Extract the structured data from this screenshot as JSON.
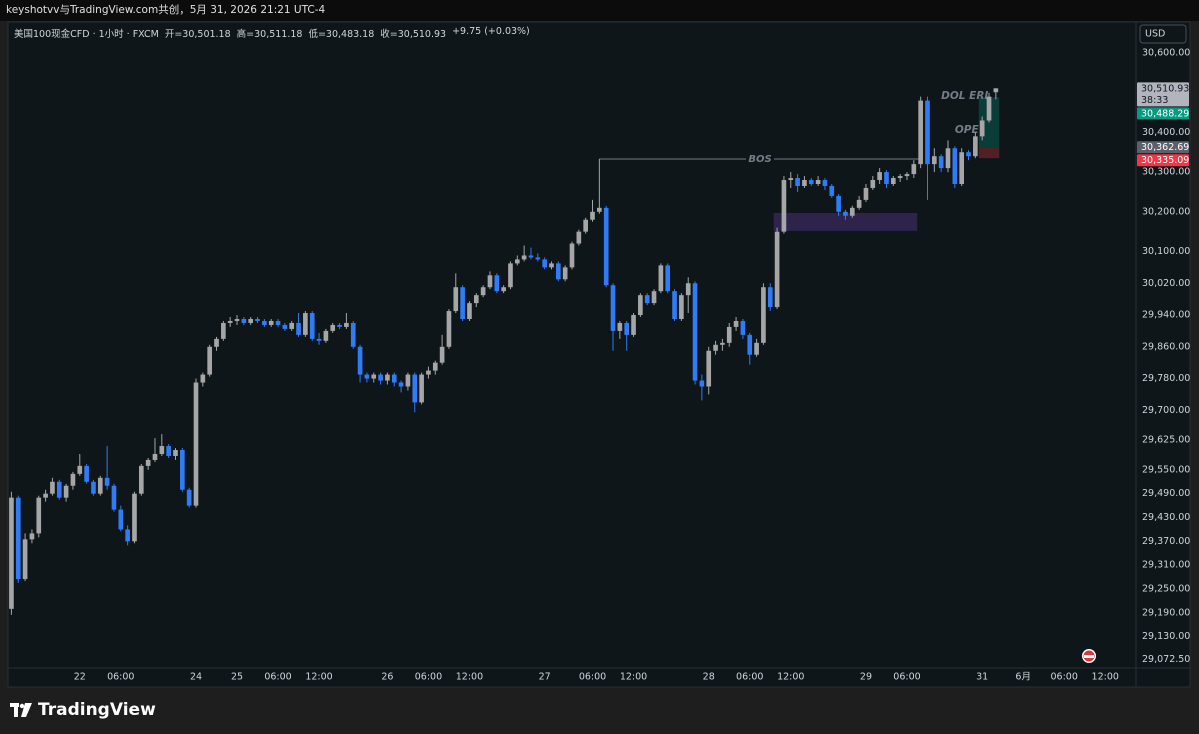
{
  "top_bar": "keyshotvv与TradingView.com共创，5月 31, 2026 21:21 UTC-4",
  "logo": "TradingView",
  "chart_data": {
    "type": "candlestick",
    "title": "美国100现金CFD · 1小时 · FXCM",
    "ohlc_legend": [
      "开=30,501.18",
      "高=30,511.18",
      "低=30,483.18",
      "收=30,510.93",
      "+9.75 (+0.03%)"
    ],
    "currency": "USD",
    "up_color": "#a6a6a6",
    "down_color": "#2f7cf6",
    "categories": [
      null,
      null,
      null,
      null,
      null,
      null,
      null,
      null,
      null,
      null,
      "22",
      null,
      null,
      null,
      null,
      null,
      "06:00",
      null,
      null,
      null,
      null,
      null,
      null,
      null,
      null,
      null,
      null,
      "24",
      null,
      null,
      null,
      null,
      null,
      "25",
      null,
      null,
      null,
      null,
      null,
      "06:00",
      null,
      null,
      null,
      null,
      null,
      "12:00",
      null,
      null,
      null,
      null,
      null,
      null,
      null,
      null,
      null,
      "26",
      null,
      null,
      null,
      null,
      null,
      "06:00",
      null,
      null,
      null,
      null,
      null,
      "12:00",
      null,
      null,
      null,
      null,
      null,
      null,
      null,
      null,
      null,
      null,
      "27",
      null,
      null,
      null,
      null,
      null,
      null,
      "06:00",
      null,
      null,
      null,
      null,
      null,
      "12:00",
      null,
      null,
      null,
      null,
      null,
      null,
      null,
      null,
      null,
      null,
      "28",
      null,
      null,
      null,
      null,
      null,
      "06:00",
      null,
      null,
      null,
      null,
      null,
      "12:00",
      null,
      null,
      null,
      null,
      null,
      null,
      null,
      null,
      null,
      null,
      "29",
      null,
      null,
      null,
      null,
      null,
      "06:00",
      null,
      null,
      null,
      null,
      null,
      null,
      null,
      null,
      null,
      null,
      "31",
      null,
      null,
      null,
      null,
      null,
      "6月",
      null,
      null,
      null,
      null,
      null,
      "06:00",
      null,
      null,
      null,
      null,
      null,
      "12:00",
      null,
      null,
      null,
      null
    ],
    "candles": [
      [
        29200,
        29495,
        29185,
        29480
      ],
      [
        29480,
        29485,
        29265,
        29275
      ],
      [
        29275,
        29390,
        29270,
        29375
      ],
      [
        29375,
        29400,
        29365,
        29390
      ],
      [
        29390,
        29485,
        29380,
        29480
      ],
      [
        29480,
        29500,
        29470,
        29490
      ],
      [
        29490,
        29530,
        29485,
        29520
      ],
      [
        29520,
        29525,
        29475,
        29480
      ],
      [
        29480,
        29515,
        29470,
        29510
      ],
      [
        29510,
        29545,
        29500,
        29540
      ],
      [
        29540,
        29590,
        29535,
        29560
      ],
      [
        29560,
        29565,
        29515,
        29520
      ],
      [
        29520,
        29525,
        29485,
        29490
      ],
      [
        29490,
        29535,
        29485,
        29530
      ],
      [
        29530,
        29610,
        29500,
        29510
      ],
      [
        29510,
        29515,
        29445,
        29450
      ],
      [
        29450,
        29460,
        29395,
        29400
      ],
      [
        29400,
        29410,
        29360,
        29370
      ],
      [
        29370,
        29495,
        29365,
        29490
      ],
      [
        29490,
        29565,
        29485,
        29560
      ],
      [
        29560,
        29580,
        29550,
        29575
      ],
      [
        29575,
        29630,
        29570,
        29590
      ],
      [
        29590,
        29640,
        29585,
        29610
      ],
      [
        29610,
        29615,
        29580,
        29585
      ],
      [
        29585,
        29605,
        29575,
        29600
      ],
      [
        29600,
        29605,
        29495,
        29500
      ],
      [
        29500,
        29505,
        29455,
        29460
      ],
      [
        29460,
        29780,
        29455,
        29770
      ],
      [
        29770,
        29795,
        29760,
        29790
      ],
      [
        29790,
        29865,
        29785,
        29860
      ],
      [
        29860,
        29885,
        29850,
        29880
      ],
      [
        29880,
        29925,
        29875,
        29920
      ],
      [
        29920,
        29935,
        29910,
        29925
      ],
      [
        29925,
        29940,
        29915,
        29930
      ],
      [
        29930,
        29935,
        29915,
        29920
      ],
      [
        29920,
        29935,
        29915,
        29930
      ],
      [
        29930,
        29935,
        29920,
        29925
      ],
      [
        29925,
        29930,
        29910,
        29915
      ],
      [
        29915,
        29930,
        29910,
        29925
      ],
      [
        29925,
        29930,
        29910,
        29915
      ],
      [
        29915,
        29920,
        29900,
        29905
      ],
      [
        29905,
        29925,
        29900,
        29920
      ],
      [
        29920,
        29945,
        29885,
        29890
      ],
      [
        29890,
        29950,
        29885,
        29945
      ],
      [
        29945,
        29950,
        29875,
        29880
      ],
      [
        29880,
        29895,
        29865,
        29875
      ],
      [
        29875,
        29905,
        29870,
        29900
      ],
      [
        29900,
        29920,
        29895,
        29915
      ],
      [
        29915,
        29920,
        29905,
        29910
      ],
      [
        29910,
        29945,
        29905,
        29920
      ],
      [
        29920,
        29925,
        29855,
        29860
      ],
      [
        29860,
        29865,
        29770,
        29790
      ],
      [
        29790,
        29795,
        29770,
        29780
      ],
      [
        29780,
        29795,
        29770,
        29790
      ],
      [
        29790,
        29795,
        29765,
        29775
      ],
      [
        29775,
        29795,
        29765,
        29790
      ],
      [
        29790,
        29795,
        29760,
        29770
      ],
      [
        29770,
        29775,
        29745,
        29760
      ],
      [
        29760,
        29795,
        29750,
        29790
      ],
      [
        29790,
        29795,
        29695,
        29720
      ],
      [
        29720,
        29795,
        29715,
        29790
      ],
      [
        29790,
        29810,
        29780,
        29800
      ],
      [
        29800,
        29825,
        29790,
        29820
      ],
      [
        29820,
        29890,
        29815,
        29860
      ],
      [
        29860,
        29955,
        29855,
        29950
      ],
      [
        29950,
        30045,
        29945,
        30010
      ],
      [
        30010,
        30015,
        29925,
        29930
      ],
      [
        29930,
        29975,
        29925,
        29970
      ],
      [
        29970,
        29995,
        29960,
        29990
      ],
      [
        29990,
        30015,
        29985,
        30010
      ],
      [
        30010,
        30050,
        30005,
        30040
      ],
      [
        30040,
        30045,
        29995,
        30000
      ],
      [
        30000,
        30015,
        29995,
        30010
      ],
      [
        30010,
        30075,
        30005,
        30070
      ],
      [
        30070,
        30090,
        30065,
        30080
      ],
      [
        30080,
        30115,
        30075,
        30090
      ],
      [
        30090,
        30110,
        30080,
        30085
      ],
      [
        30085,
        30095,
        30075,
        30080
      ],
      [
        30080,
        30085,
        30055,
        30060
      ],
      [
        30060,
        30075,
        30055,
        30070
      ],
      [
        30070,
        30075,
        30025,
        30030
      ],
      [
        30030,
        30065,
        30025,
        30060
      ],
      [
        30060,
        30125,
        30055,
        30120
      ],
      [
        30120,
        30155,
        30115,
        30150
      ],
      [
        30150,
        30185,
        30145,
        30180
      ],
      [
        30180,
        30230,
        30175,
        30200
      ],
      [
        30200,
        30333,
        30195,
        30210
      ],
      [
        30210,
        30215,
        30010,
        30015
      ],
      [
        30015,
        30020,
        29850,
        29900
      ],
      [
        29900,
        29925,
        29880,
        29920
      ],
      [
        29920,
        29925,
        29850,
        29890
      ],
      [
        29890,
        29945,
        29885,
        29940
      ],
      [
        29940,
        29995,
        29935,
        29990
      ],
      [
        29990,
        29995,
        29965,
        29970
      ],
      [
        29970,
        30005,
        29965,
        30000
      ],
      [
        30000,
        30070,
        29995,
        30065
      ],
      [
        30065,
        30070,
        29995,
        30000
      ],
      [
        30000,
        30005,
        29925,
        29930
      ],
      [
        29930,
        29995,
        29925,
        29990
      ],
      [
        29990,
        30035,
        29945,
        30020
      ],
      [
        30020,
        30025,
        29765,
        29775
      ],
      [
        29775,
        29790,
        29725,
        29760
      ],
      [
        29760,
        29860,
        29740,
        29850
      ],
      [
        29850,
        29875,
        29840,
        29865
      ],
      [
        29865,
        29880,
        29850,
        29870
      ],
      [
        29870,
        29920,
        29860,
        29910
      ],
      [
        29910,
        29935,
        29900,
        29925
      ],
      [
        29925,
        29930,
        29880,
        29890
      ],
      [
        29890,
        29895,
        29815,
        29840
      ],
      [
        29840,
        29880,
        29835,
        29870
      ],
      [
        29870,
        30020,
        29865,
        30010
      ],
      [
        30010,
        30020,
        29950,
        29960
      ],
      [
        29960,
        30160,
        29955,
        30150
      ],
      [
        30150,
        30290,
        30145,
        30280
      ],
      [
        30280,
        30300,
        30260,
        30285
      ],
      [
        30285,
        30295,
        30250,
        30265
      ],
      [
        30265,
        30290,
        30260,
        30280
      ],
      [
        30280,
        30285,
        30265,
        30270
      ],
      [
        30270,
        30290,
        30265,
        30280
      ],
      [
        30280,
        30285,
        30255,
        30265
      ],
      [
        30265,
        30270,
        30235,
        30240
      ],
      [
        30240,
        30245,
        30190,
        30200
      ],
      [
        30200,
        30205,
        30180,
        30190
      ],
      [
        30190,
        30215,
        30185,
        30210
      ],
      [
        30210,
        30240,
        30205,
        30230
      ],
      [
        30230,
        30270,
        30225,
        30260
      ],
      [
        30260,
        30290,
        30255,
        30280
      ],
      [
        30280,
        30310,
        30270,
        30300
      ],
      [
        30300,
        30305,
        30260,
        30270
      ],
      [
        30270,
        30290,
        30265,
        30285
      ],
      [
        30285,
        30295,
        30275,
        30290
      ],
      [
        30290,
        30300,
        30280,
        30295
      ],
      [
        30295,
        30330,
        30285,
        30320
      ],
      [
        30320,
        30490,
        30310,
        30480
      ],
      [
        30480,
        30490,
        30230,
        30320
      ],
      [
        30320,
        30360,
        30300,
        30340
      ],
      [
        30340,
        30345,
        30300,
        30310
      ],
      [
        30310,
        30380,
        30300,
        30360
      ],
      [
        30360,
        30365,
        30260,
        30270
      ],
      [
        30270,
        30360,
        30265,
        30350
      ],
      [
        30350,
        30355,
        30330,
        30340
      ],
      [
        30340,
        30400,
        30335,
        30390
      ],
      [
        30390,
        30440,
        30380,
        30430
      ],
      [
        30430,
        30500,
        30425,
        30490
      ],
      [
        30501.18,
        30511.18,
        30483.18,
        30510.93
      ],
      null,
      null,
      null,
      null,
      null,
      null,
      null,
      null,
      null,
      null,
      null,
      null,
      null,
      null,
      null,
      null,
      null,
      null,
      null,
      null
    ],
    "ylim": [
      29051,
      30678
    ],
    "yticks": [
      {
        "value": 30600,
        "label": "30,600.00"
      },
      {
        "value": 30400,
        "label": "30,400.00"
      },
      {
        "value": 30300,
        "label": "30,300.00"
      },
      {
        "value": 30200,
        "label": "30,200.00"
      },
      {
        "value": 30100,
        "label": "30,100.00"
      },
      {
        "value": 30020,
        "label": "30,020.00"
      },
      {
        "value": 29940,
        "label": "29,940.00"
      },
      {
        "value": 29860,
        "label": "29,860.00"
      },
      {
        "value": 29780,
        "label": "29,780.00"
      },
      {
        "value": 29700,
        "label": "29,700.00"
      },
      {
        "value": 29625,
        "label": "29,625.00"
      },
      {
        "value": 29550,
        "label": "29,550.00"
      },
      {
        "value": 29490,
        "label": "29,490.00"
      },
      {
        "value": 29430,
        "label": "29,430.00"
      },
      {
        "value": 29370,
        "label": "29,370.00"
      },
      {
        "value": 29310,
        "label": "29,310.00"
      },
      {
        "value": 29250,
        "label": "29,250.00"
      },
      {
        "value": 29190,
        "label": "29,190.00"
      },
      {
        "value": 29130,
        "label": "29,130.00"
      },
      {
        "value": 29072.5,
        "label": "29,072.50"
      }
    ],
    "price_labels": [
      {
        "value": 30510.93,
        "label": "30,510.93",
        "sub": "38:33",
        "color": "#b2b5be",
        "text_color": "#131722"
      },
      {
        "value": 30488.29,
        "label": "30,488.29",
        "color": "#089981",
        "text_color": "#ffffff"
      },
      {
        "value": 30362.69,
        "label": "30,362.69",
        "color": "#5d606b",
        "text_color": "#ffffff"
      },
      {
        "value": 30335.09,
        "label": "30,335.09",
        "color": "#f23645",
        "text_color": "#ffffff"
      }
    ],
    "levels": [
      {
        "text": "BOS",
        "value": 30333,
        "from": 86,
        "to": 133
      }
    ],
    "annotations": [
      {
        "text": "DOL ERL",
        "value": 30492,
        "at": 136
      },
      {
        "text": "OPE",
        "value": 30406,
        "at": 138
      }
    ],
    "zone": {
      "top": 30197,
      "bottom": 30152,
      "from": 112,
      "to": 132,
      "color": "#3a2a5c"
    },
    "position": {
      "from": 142,
      "to": 144
    }
  }
}
